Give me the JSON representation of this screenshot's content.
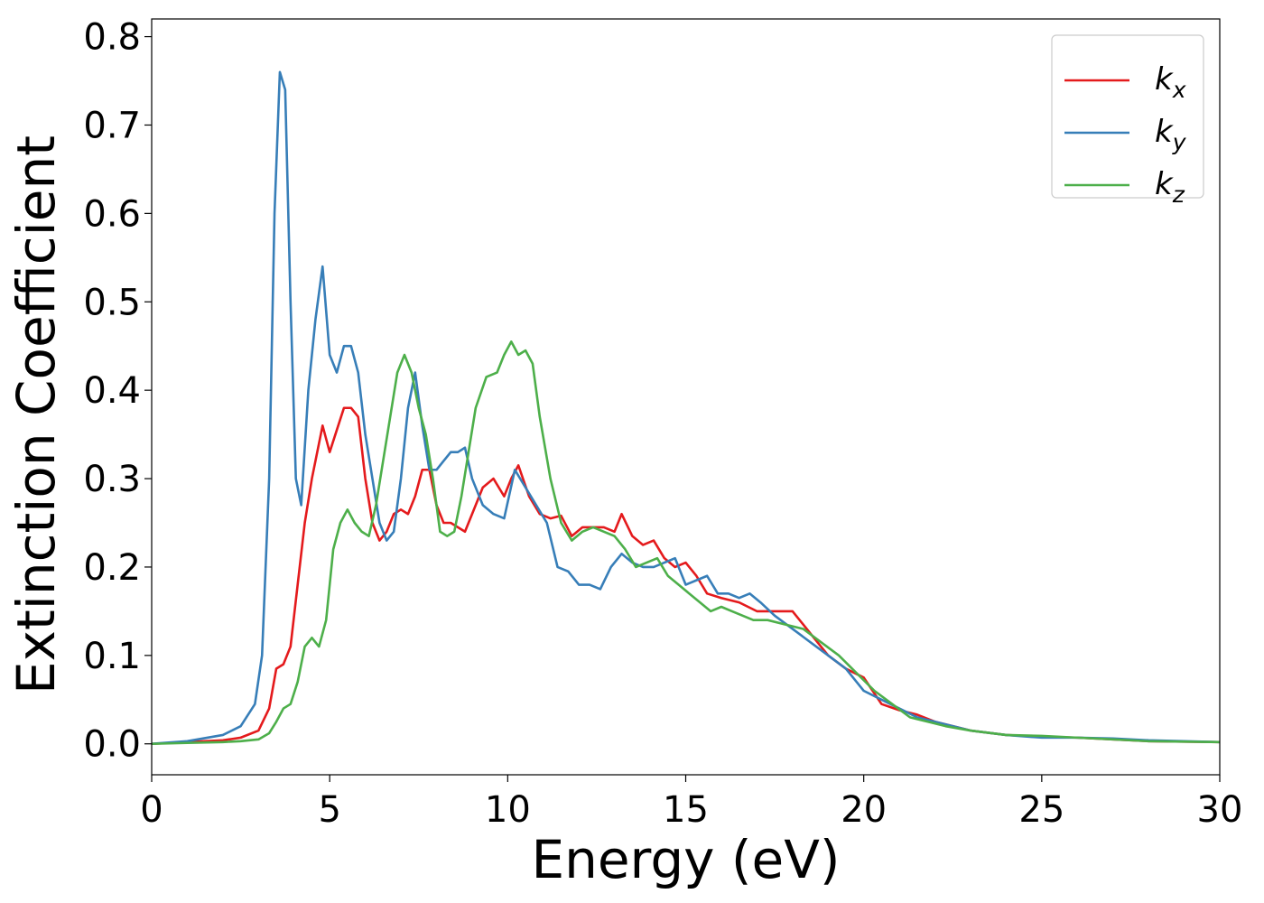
{
  "chart_data": {
    "type": "line",
    "title": "",
    "xlabel": "Energy (eV)",
    "ylabel": "Extinction Coefficient",
    "xlim": [
      0,
      30
    ],
    "ylim": [
      -0.035,
      0.82
    ],
    "xticks": [
      0,
      5,
      10,
      15,
      20,
      25,
      30
    ],
    "xtick_labels": [
      "0",
      "5",
      "10",
      "15",
      "20",
      "25",
      "30"
    ],
    "yticks": [
      0.0,
      0.1,
      0.2,
      0.3,
      0.4,
      0.5,
      0.6,
      0.7,
      0.8
    ],
    "ytick_labels": [
      "0.0",
      "0.1",
      "0.2",
      "0.3",
      "0.4",
      "0.5",
      "0.6",
      "0.7",
      "0.8"
    ],
    "grid": false,
    "legend_position": "top-right",
    "series": [
      {
        "name": "k",
        "subscript": "x",
        "color": "#e41a1c",
        "x": [
          0,
          1,
          2,
          2.5,
          3.0,
          3.3,
          3.5,
          3.7,
          3.9,
          4.1,
          4.3,
          4.5,
          4.8,
          5.0,
          5.2,
          5.4,
          5.6,
          5.8,
          6.0,
          6.2,
          6.4,
          6.6,
          6.8,
          7.0,
          7.2,
          7.4,
          7.6,
          7.8,
          8.0,
          8.2,
          8.4,
          8.6,
          8.8,
          9.0,
          9.3,
          9.6,
          9.9,
          10.1,
          10.3,
          10.6,
          10.9,
          11.2,
          11.5,
          11.8,
          12.1,
          12.4,
          12.7,
          13.0,
          13.2,
          13.5,
          13.8,
          14.1,
          14.4,
          14.7,
          15.0,
          15.3,
          15.6,
          16.0,
          16.5,
          17.0,
          17.5,
          18.0,
          18.3,
          18.6,
          19.0,
          19.5,
          20.0,
          20.5,
          21.0,
          21.5,
          22.0,
          22.5,
          23.0,
          24.0,
          25.0,
          26.0,
          27.0,
          28.0,
          30.0
        ],
        "values": [
          0.0,
          0.002,
          0.004,
          0.007,
          0.015,
          0.04,
          0.085,
          0.09,
          0.11,
          0.18,
          0.25,
          0.3,
          0.36,
          0.33,
          0.355,
          0.38,
          0.38,
          0.37,
          0.3,
          0.25,
          0.23,
          0.24,
          0.26,
          0.265,
          0.26,
          0.28,
          0.31,
          0.31,
          0.27,
          0.25,
          0.25,
          0.245,
          0.24,
          0.26,
          0.29,
          0.3,
          0.28,
          0.3,
          0.315,
          0.28,
          0.26,
          0.255,
          0.258,
          0.235,
          0.245,
          0.245,
          0.245,
          0.24,
          0.26,
          0.235,
          0.225,
          0.23,
          0.21,
          0.2,
          0.205,
          0.19,
          0.17,
          0.165,
          0.16,
          0.15,
          0.15,
          0.15,
          0.135,
          0.12,
          0.1,
          0.085,
          0.075,
          0.045,
          0.038,
          0.033,
          0.025,
          0.02,
          0.015,
          0.01,
          0.008,
          0.007,
          0.005,
          0.003,
          0.002
        ]
      },
      {
        "name": "k",
        "subscript": "y",
        "color": "#377eb8",
        "x": [
          0,
          1,
          2,
          2.5,
          2.9,
          3.1,
          3.3,
          3.45,
          3.6,
          3.75,
          3.9,
          4.05,
          4.2,
          4.4,
          4.6,
          4.8,
          5.0,
          5.2,
          5.4,
          5.6,
          5.8,
          6.0,
          6.2,
          6.4,
          6.6,
          6.8,
          7.0,
          7.2,
          7.4,
          7.6,
          7.8,
          8.0,
          8.2,
          8.4,
          8.6,
          8.8,
          9.0,
          9.3,
          9.6,
          9.9,
          10.2,
          10.5,
          10.8,
          11.1,
          11.4,
          11.7,
          12.0,
          12.3,
          12.6,
          12.9,
          13.2,
          13.5,
          13.8,
          14.1,
          14.4,
          14.7,
          15.0,
          15.3,
          15.6,
          15.9,
          16.2,
          16.5,
          16.8,
          17.1,
          17.5,
          18.0,
          18.5,
          19.0,
          19.5,
          20.0,
          20.5,
          21.0,
          21.5,
          22.0,
          22.5,
          23.0,
          24.0,
          25.0,
          26.0,
          27.0,
          28.0,
          30.0
        ],
        "values": [
          0.0,
          0.003,
          0.01,
          0.02,
          0.045,
          0.1,
          0.3,
          0.6,
          0.76,
          0.74,
          0.5,
          0.3,
          0.27,
          0.4,
          0.48,
          0.54,
          0.44,
          0.42,
          0.45,
          0.45,
          0.42,
          0.35,
          0.3,
          0.25,
          0.23,
          0.24,
          0.3,
          0.38,
          0.42,
          0.36,
          0.31,
          0.31,
          0.32,
          0.33,
          0.33,
          0.335,
          0.3,
          0.27,
          0.26,
          0.255,
          0.31,
          0.29,
          0.27,
          0.25,
          0.2,
          0.195,
          0.18,
          0.18,
          0.175,
          0.2,
          0.215,
          0.205,
          0.2,
          0.2,
          0.205,
          0.21,
          0.18,
          0.185,
          0.19,
          0.17,
          0.17,
          0.165,
          0.17,
          0.16,
          0.145,
          0.13,
          0.115,
          0.1,
          0.085,
          0.06,
          0.05,
          0.04,
          0.03,
          0.025,
          0.02,
          0.015,
          0.01,
          0.007,
          0.007,
          0.006,
          0.004,
          0.002
        ]
      },
      {
        "name": "k",
        "subscript": "z",
        "color": "#4daf4a",
        "x": [
          0,
          1,
          2,
          2.5,
          3.0,
          3.3,
          3.5,
          3.7,
          3.9,
          4.1,
          4.3,
          4.5,
          4.7,
          4.9,
          5.1,
          5.3,
          5.5,
          5.7,
          5.9,
          6.1,
          6.3,
          6.5,
          6.7,
          6.9,
          7.1,
          7.3,
          7.5,
          7.7,
          7.9,
          8.1,
          8.3,
          8.5,
          8.7,
          8.9,
          9.1,
          9.4,
          9.7,
          9.9,
          10.1,
          10.3,
          10.5,
          10.7,
          10.9,
          11.2,
          11.5,
          11.8,
          12.1,
          12.4,
          12.7,
          13.0,
          13.3,
          13.6,
          13.9,
          14.2,
          14.5,
          14.8,
          15.1,
          15.4,
          15.7,
          16.0,
          16.3,
          16.6,
          16.9,
          17.3,
          17.8,
          18.3,
          18.8,
          19.3,
          19.8,
          20.3,
          20.8,
          21.3,
          21.8,
          22.3,
          23.0,
          24.0,
          25.0,
          26.0,
          27.0,
          28.0,
          30.0
        ],
        "values": [
          0.0,
          0.001,
          0.002,
          0.003,
          0.005,
          0.012,
          0.025,
          0.04,
          0.045,
          0.07,
          0.11,
          0.12,
          0.11,
          0.14,
          0.22,
          0.25,
          0.265,
          0.25,
          0.24,
          0.235,
          0.27,
          0.32,
          0.37,
          0.42,
          0.44,
          0.42,
          0.38,
          0.35,
          0.3,
          0.24,
          0.235,
          0.24,
          0.28,
          0.33,
          0.38,
          0.415,
          0.42,
          0.44,
          0.455,
          0.44,
          0.445,
          0.43,
          0.37,
          0.3,
          0.25,
          0.23,
          0.24,
          0.245,
          0.24,
          0.235,
          0.22,
          0.2,
          0.205,
          0.21,
          0.19,
          0.18,
          0.17,
          0.16,
          0.15,
          0.155,
          0.15,
          0.145,
          0.14,
          0.14,
          0.135,
          0.13,
          0.115,
          0.1,
          0.08,
          0.06,
          0.045,
          0.03,
          0.025,
          0.02,
          0.015,
          0.01,
          0.009,
          0.007,
          0.005,
          0.003,
          0.002
        ]
      }
    ]
  }
}
